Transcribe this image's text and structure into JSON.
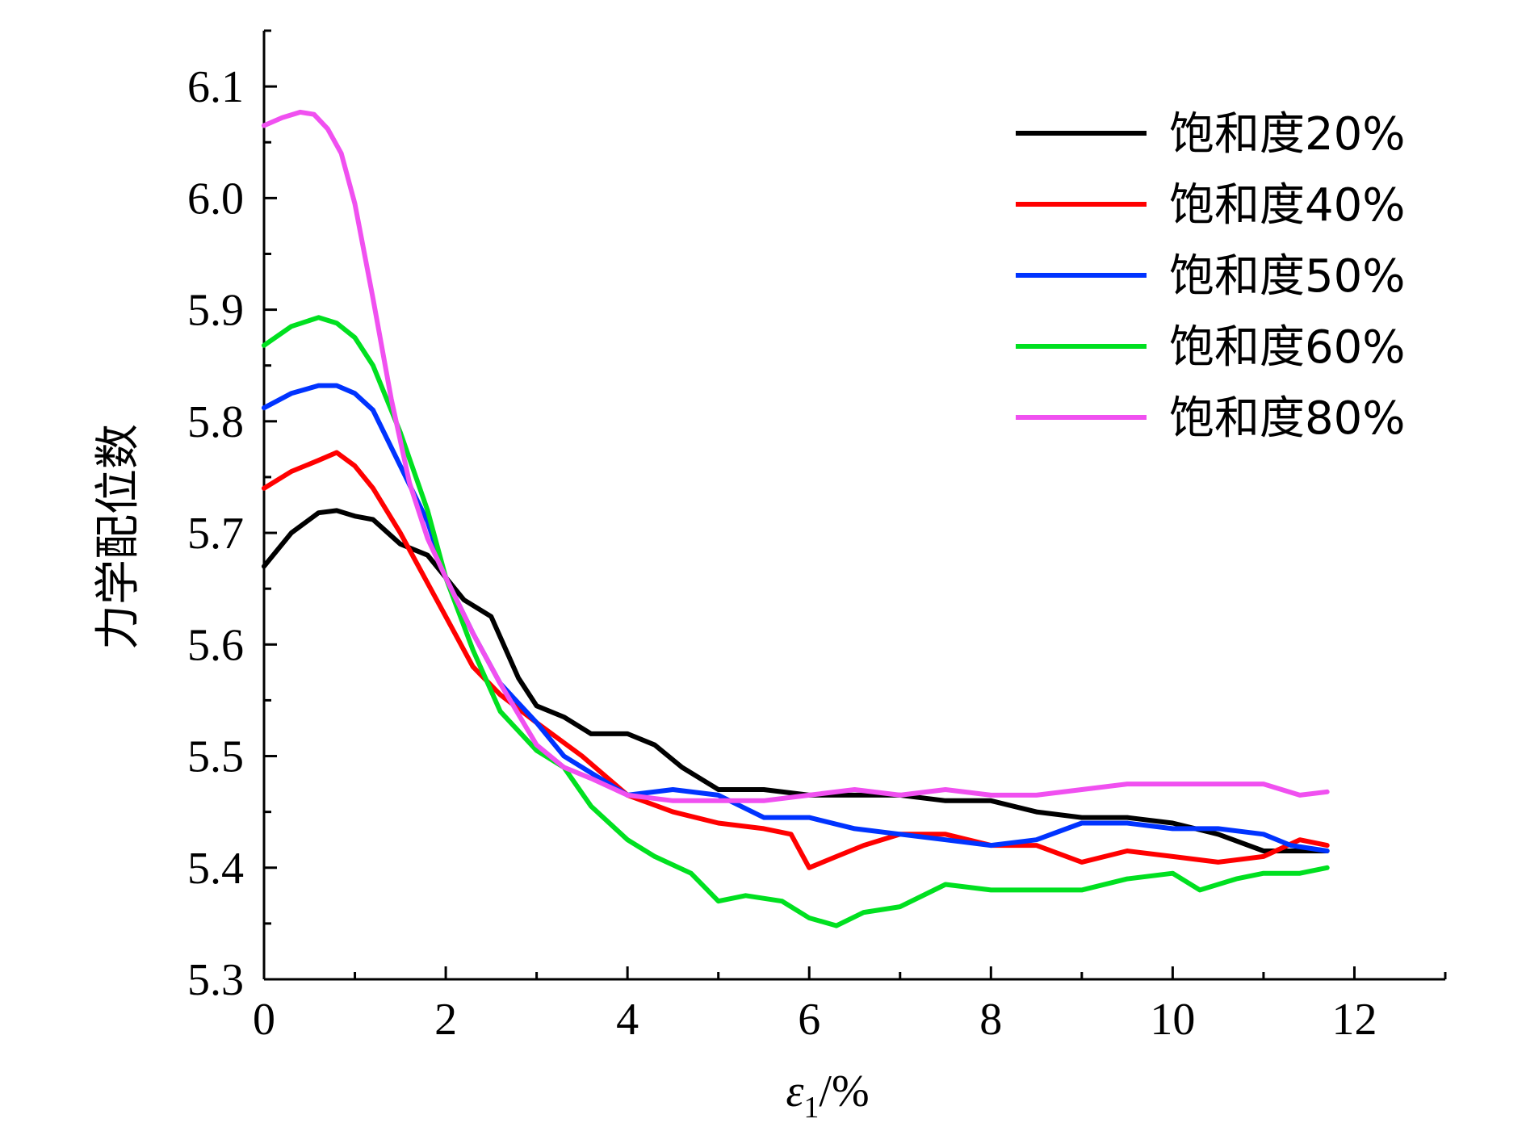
{
  "chart_data": {
    "type": "line",
    "xlabel": "ε1/%",
    "xlabel_symbol": "ε",
    "xlabel_subscript": "1",
    "xlabel_suffix": "/%",
    "ylabel": "力学配位数",
    "xlim": [
      0,
      13
    ],
    "ylim": [
      5.3,
      6.15
    ],
    "x_ticks": [
      0,
      2,
      4,
      6,
      8,
      10,
      12
    ],
    "y_ticks": [
      5.3,
      5.4,
      5.5,
      5.6,
      5.7,
      5.8,
      5.9,
      6.0,
      6.1
    ],
    "x_tick_labels": [
      "0",
      "2",
      "4",
      "6",
      "8",
      "10",
      "12"
    ],
    "y_tick_labels": [
      "5.3",
      "5.4",
      "5.5",
      "5.6",
      "5.7",
      "5.8",
      "5.9",
      "6.0",
      "6.1"
    ],
    "grid": false,
    "legend_position": "top-right",
    "series": [
      {
        "name": "饱和度20%",
        "color": "#000000",
        "x": [
          0,
          0.3,
          0.6,
          0.8,
          1.0,
          1.2,
          1.5,
          1.8,
          2.0,
          2.2,
          2.5,
          2.8,
          3.0,
          3.3,
          3.6,
          4.0,
          4.3,
          4.6,
          5.0,
          5.5,
          6.0,
          6.5,
          7.0,
          7.5,
          8.0,
          8.5,
          9.0,
          9.5,
          10.0,
          10.5,
          11.0,
          11.3,
          11.7
        ],
        "y": [
          5.67,
          5.7,
          5.718,
          5.72,
          5.715,
          5.712,
          5.69,
          5.68,
          5.66,
          5.64,
          5.625,
          5.57,
          5.545,
          5.535,
          5.52,
          5.52,
          5.51,
          5.49,
          5.47,
          5.47,
          5.465,
          5.465,
          5.465,
          5.46,
          5.46,
          5.45,
          5.445,
          5.445,
          5.44,
          5.43,
          5.415,
          5.415,
          5.415
        ]
      },
      {
        "name": "饱和度40%",
        "color": "#ff0000",
        "x": [
          0,
          0.3,
          0.6,
          0.8,
          1.0,
          1.2,
          1.5,
          1.8,
          2.0,
          2.3,
          2.6,
          3.0,
          3.5,
          4.0,
          4.5,
          5.0,
          5.5,
          5.8,
          6.0,
          6.3,
          6.6,
          7.0,
          7.5,
          8.0,
          8.5,
          9.0,
          9.5,
          10.0,
          10.5,
          11.0,
          11.4,
          11.7
        ],
        "y": [
          5.74,
          5.755,
          5.765,
          5.772,
          5.76,
          5.74,
          5.7,
          5.655,
          5.625,
          5.58,
          5.555,
          5.53,
          5.5,
          5.465,
          5.45,
          5.44,
          5.435,
          5.43,
          5.4,
          5.41,
          5.42,
          5.43,
          5.43,
          5.42,
          5.42,
          5.405,
          5.415,
          5.41,
          5.405,
          5.41,
          5.425,
          5.42
        ]
      },
      {
        "name": "饱和度50%",
        "color": "#0033ff",
        "x": [
          0,
          0.3,
          0.6,
          0.8,
          1.0,
          1.2,
          1.5,
          1.8,
          2.0,
          2.3,
          2.6,
          3.0,
          3.3,
          3.6,
          4.0,
          4.5,
          5.0,
          5.5,
          6.0,
          6.5,
          7.0,
          7.5,
          8.0,
          8.5,
          9.0,
          9.5,
          10.0,
          10.5,
          11.0,
          11.3,
          11.7
        ],
        "y": [
          5.812,
          5.825,
          5.832,
          5.832,
          5.825,
          5.81,
          5.76,
          5.71,
          5.66,
          5.61,
          5.565,
          5.53,
          5.5,
          5.485,
          5.465,
          5.47,
          5.465,
          5.445,
          5.445,
          5.435,
          5.43,
          5.425,
          5.42,
          5.425,
          5.44,
          5.44,
          5.435,
          5.435,
          5.43,
          5.42,
          5.415
        ]
      },
      {
        "name": "饱和度60%",
        "color": "#00e020",
        "x": [
          0,
          0.3,
          0.6,
          0.8,
          1.0,
          1.2,
          1.5,
          1.8,
          2.0,
          2.3,
          2.6,
          3.0,
          3.3,
          3.6,
          4.0,
          4.3,
          4.7,
          5.0,
          5.3,
          5.7,
          6.0,
          6.3,
          6.6,
          7.0,
          7.5,
          8.0,
          8.5,
          9.0,
          9.5,
          10.0,
          10.3,
          10.7,
          11.0,
          11.4,
          11.7
        ],
        "y": [
          5.868,
          5.885,
          5.893,
          5.888,
          5.875,
          5.85,
          5.79,
          5.72,
          5.66,
          5.595,
          5.54,
          5.505,
          5.49,
          5.455,
          5.425,
          5.41,
          5.395,
          5.37,
          5.375,
          5.37,
          5.355,
          5.348,
          5.36,
          5.365,
          5.385,
          5.38,
          5.38,
          5.38,
          5.39,
          5.395,
          5.38,
          5.39,
          5.395,
          5.395,
          5.4
        ]
      },
      {
        "name": "饱和度80%",
        "color": "#f050f0",
        "x": [
          0,
          0.2,
          0.4,
          0.55,
          0.7,
          0.85,
          1.0,
          1.2,
          1.4,
          1.6,
          1.8,
          2.0,
          2.3,
          2.6,
          3.0,
          3.3,
          3.6,
          4.0,
          4.5,
          5.0,
          5.5,
          6.0,
          6.5,
          7.0,
          7.5,
          8.0,
          8.5,
          9.0,
          9.5,
          10.0,
          10.5,
          11.0,
          11.4,
          11.7
        ],
        "y": [
          6.065,
          6.072,
          6.077,
          6.075,
          6.062,
          6.04,
          5.995,
          5.91,
          5.82,
          5.745,
          5.695,
          5.66,
          5.61,
          5.565,
          5.51,
          5.49,
          5.48,
          5.465,
          5.46,
          5.46,
          5.46,
          5.465,
          5.47,
          5.465,
          5.47,
          5.465,
          5.465,
          5.47,
          5.475,
          5.475,
          5.475,
          5.475,
          5.465,
          5.468
        ]
      }
    ]
  }
}
